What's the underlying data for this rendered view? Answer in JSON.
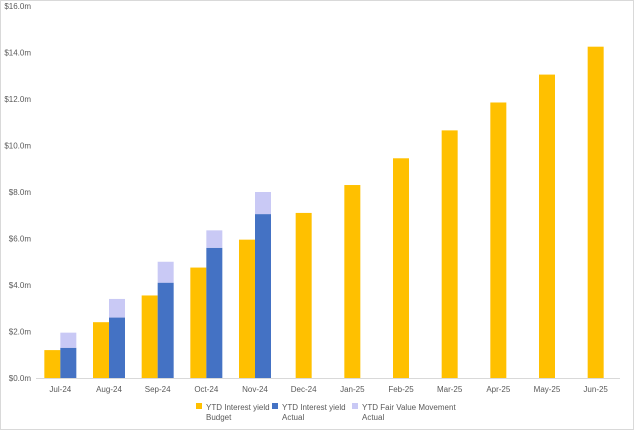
{
  "chart_data": {
    "type": "bar",
    "categories": [
      "Jul-24",
      "Aug-24",
      "Sep-24",
      "Oct-24",
      "Nov-24",
      "Dec-24",
      "Jan-25",
      "Feb-25",
      "Mar-25",
      "Apr-25",
      "May-25",
      "Jun-25"
    ],
    "ylim": [
      0,
      16
    ],
    "ytick_labels": [
      "$0.0m",
      "$2.0m",
      "$4.0m",
      "$6.0m",
      "$8.0m",
      "$10.0m",
      "$12.0m",
      "$14.0m",
      "$16.0m"
    ],
    "grid": false,
    "legend_position": "bottom",
    "series": [
      {
        "name": "YTD Interest yield Budget",
        "name_lines": [
          "YTD Interest yield",
          "Budget"
        ],
        "color": "#FFC000",
        "values": [
          1.2,
          2.4,
          3.55,
          4.75,
          5.95,
          7.1,
          8.3,
          9.45,
          10.65,
          11.85,
          13.05,
          14.25
        ]
      },
      {
        "name": "YTD Interest yield Actual",
        "name_lines": [
          "YTD Interest yield",
          "Actual"
        ],
        "color": "#4472C4",
        "values": [
          1.3,
          2.6,
          4.1,
          5.6,
          7.05,
          null,
          null,
          null,
          null,
          null,
          null,
          null
        ]
      },
      {
        "name": "YTD Fair Value Movement Actual",
        "name_lines": [
          "YTD Fair Value Movement",
          "Actual"
        ],
        "color": "#C9C9F5",
        "stacked_on": "YTD Interest yield Actual",
        "values": [
          0.65,
          0.8,
          0.9,
          0.75,
          0.95,
          null,
          null,
          null,
          null,
          null,
          null,
          null
        ]
      }
    ]
  }
}
